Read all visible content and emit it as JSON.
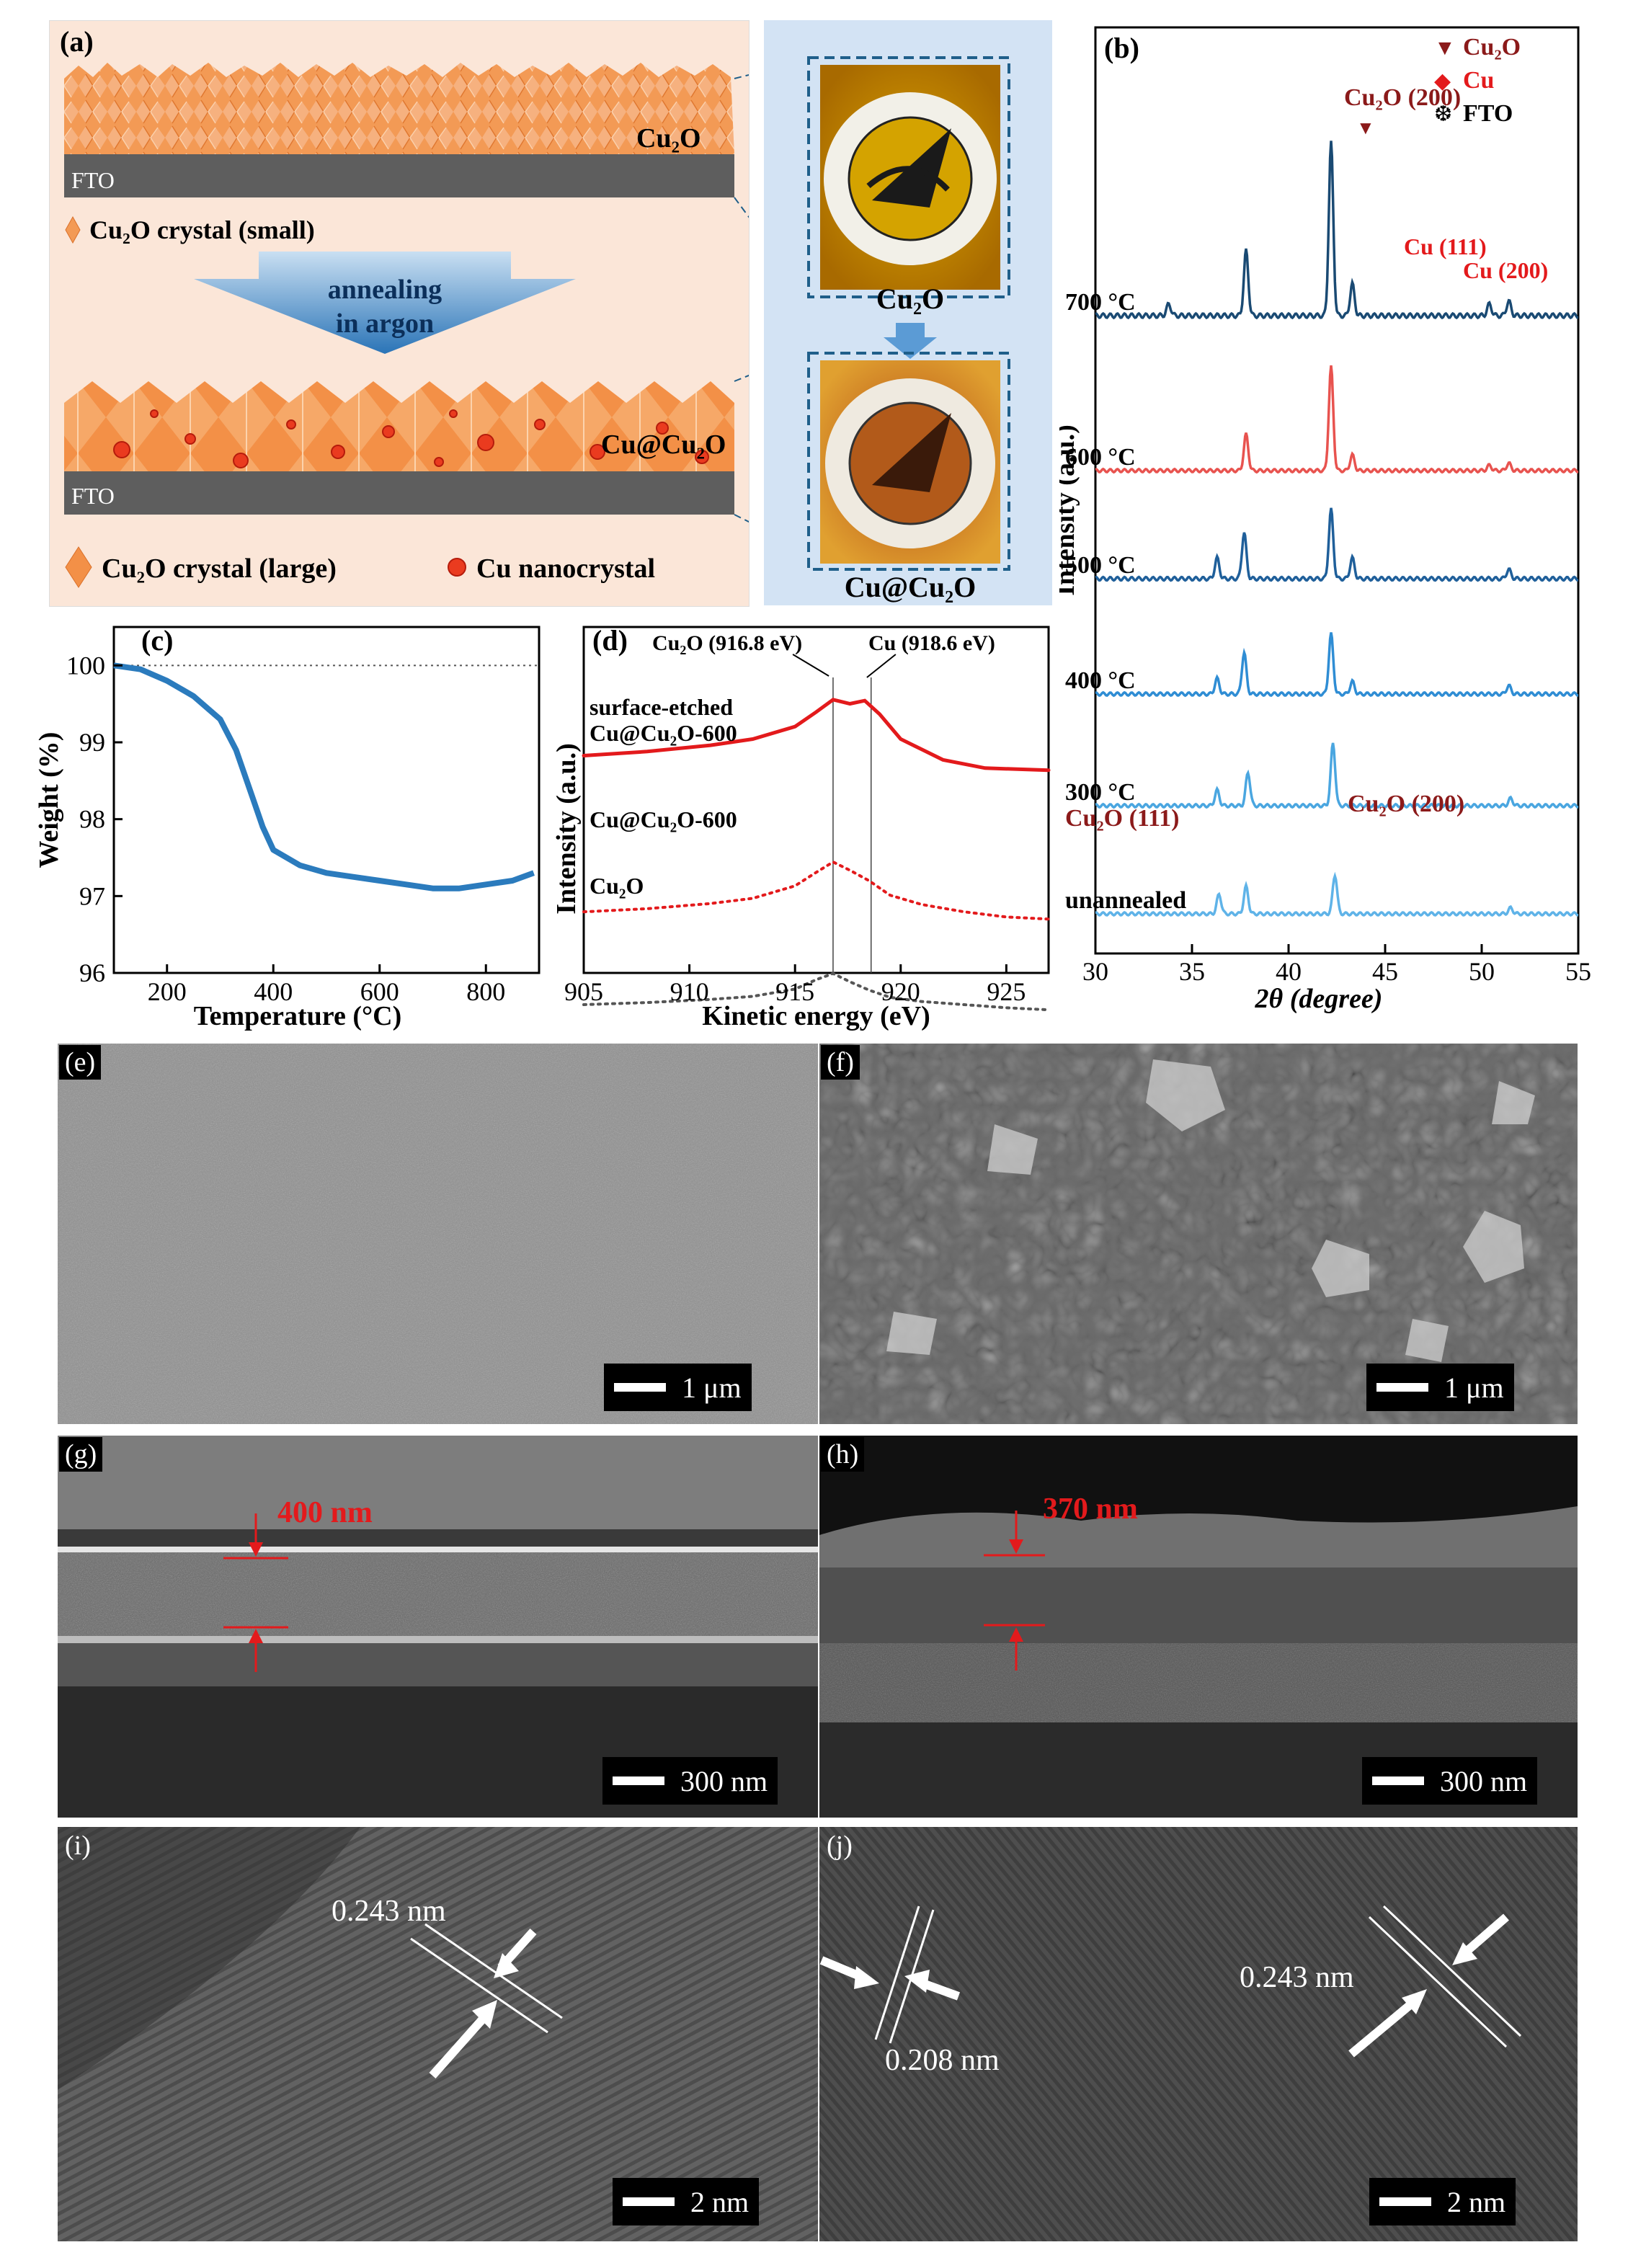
{
  "panel_a": {
    "label": "(a)",
    "layer_top": "Cu₂O",
    "substrate": "FTO",
    "legend_small": "Cu₂O crystal (small)",
    "arrow_text_1": "annealing",
    "arrow_text_2": "in argon",
    "layer_bottom": "Cu@Cu₂O",
    "legend_large": "Cu₂O crystal (large)",
    "legend_nano": "Cu nanocrystal",
    "photo_top": "Cu₂O",
    "photo_bottom": "Cu@Cu₂O"
  },
  "panel_b": {
    "label": "(b)",
    "legend": [
      {
        "symbol": "▼",
        "text": "Cu₂O",
        "color": "#8b1a1a"
      },
      {
        "symbol": "◆",
        "text": "Cu",
        "color": "#e31a1c"
      },
      {
        "symbol": "❆",
        "text": "FTO",
        "color": "#000000"
      }
    ],
    "peak_labels": {
      "cu2o200_top": "Cu₂O (200)",
      "cu111": "Cu (111)",
      "cu200": "Cu (200)",
      "cu2o111_bottom": "Cu₂O (111)",
      "cu2o200_bottom": "Cu₂O (200)"
    },
    "xlabel": "2θ (degree)",
    "ylabel": "Intensity (a.u.)"
  },
  "panel_c": {
    "label": "(c)"
  },
  "panel_d": {
    "label": "(d)",
    "ann_cu2o": "Cu₂O (916.8 eV)",
    "ann_cu": "Cu (918.6 eV)"
  },
  "sem": {
    "e": {
      "label": "(e)",
      "scale": "1 μm"
    },
    "f": {
      "label": "(f)",
      "scale": "1 μm"
    },
    "g": {
      "label": "(g)",
      "scale": "300 nm",
      "thickness": "400 nm"
    },
    "h": {
      "label": "(h)",
      "scale": "300 nm",
      "thickness": "370 nm"
    },
    "i": {
      "label": "(i)",
      "scale": "2 nm",
      "dspacing": "0.243 nm"
    },
    "j": {
      "label": "(j)",
      "scale": "2 nm",
      "dspacing1": "0.243 nm",
      "dspacing2": "0.208 nm"
    }
  },
  "chart_data": [
    {
      "type": "line",
      "panel": "b",
      "xlabel": "2θ (degree)",
      "ylabel": "Intensity (a.u.)",
      "xlim": [
        30,
        55
      ],
      "xticks": [
        30,
        35,
        40,
        45,
        50,
        55
      ],
      "series": [
        {
          "name": "700 °C",
          "color": "#1a4a73",
          "peaks": [
            [
              33.8,
              0.08
            ],
            [
              37.8,
              0.45
            ],
            [
              42.2,
              1.2
            ],
            [
              43.3,
              0.22
            ],
            [
              50.4,
              0.08
            ],
            [
              51.4,
              0.1
            ]
          ]
        },
        {
          "name": "600 °C",
          "color": "#e8534f",
          "peaks": [
            [
              37.8,
              0.35
            ],
            [
              42.2,
              1.0
            ],
            [
              43.3,
              0.15
            ],
            [
              50.4,
              0.05
            ],
            [
              51.4,
              0.07
            ]
          ]
        },
        {
          "name": "500 °C",
          "color": "#1f5f9a",
          "peaks": [
            [
              36.3,
              0.18
            ],
            [
              37.7,
              0.4
            ],
            [
              42.2,
              0.6
            ],
            [
              43.3,
              0.18
            ],
            [
              51.4,
              0.08
            ]
          ]
        },
        {
          "name": "400 °C",
          "color": "#2f8dd4",
          "peaks": [
            [
              36.3,
              0.15
            ],
            [
              37.7,
              0.4
            ],
            [
              42.2,
              0.58
            ],
            [
              43.3,
              0.12
            ],
            [
              51.4,
              0.08
            ]
          ]
        },
        {
          "name": "300 °C",
          "color": "#4aa6e0",
          "peaks": [
            [
              36.3,
              0.15
            ],
            [
              37.9,
              0.32
            ],
            [
              42.3,
              0.6
            ],
            [
              51.5,
              0.07
            ]
          ]
        },
        {
          "name": "unannealed",
          "color": "#5fb3e8",
          "peaks": [
            [
              36.4,
              0.2
            ],
            [
              37.8,
              0.28
            ],
            [
              42.4,
              0.4
            ],
            [
              51.5,
              0.06
            ]
          ]
        }
      ]
    },
    {
      "type": "line",
      "panel": "c",
      "xlabel": "Temperature (°C)",
      "ylabel": "Weight (%)",
      "xlim": [
        100,
        900
      ],
      "ylim": [
        96,
        100.5
      ],
      "xticks": [
        200,
        400,
        600,
        800
      ],
      "yticks": [
        96,
        97,
        98,
        99,
        100
      ],
      "reference_line": 100,
      "series": [
        {
          "name": "",
          "color": "#2b7bbd",
          "x": [
            100,
            150,
            200,
            250,
            300,
            330,
            360,
            380,
            400,
            450,
            500,
            550,
            600,
            650,
            700,
            750,
            800,
            850,
            890
          ],
          "y": [
            100.0,
            99.95,
            99.8,
            99.6,
            99.3,
            98.9,
            98.3,
            97.9,
            97.6,
            97.4,
            97.3,
            97.25,
            97.2,
            97.15,
            97.1,
            97.1,
            97.15,
            97.2,
            97.3
          ]
        }
      ]
    },
    {
      "type": "line",
      "panel": "d",
      "xlabel": "Kinetic energy (eV)",
      "ylabel": "Intensity (a.u.)",
      "xlim": [
        905,
        927
      ],
      "xticks": [
        905,
        910,
        915,
        920,
        925
      ],
      "vlines": [
        916.8,
        918.6
      ],
      "series": [
        {
          "name": "surface-etched Cu@Cu₂O-600",
          "color": "#e31a1c",
          "style": "solid",
          "x": [
            905,
            908,
            911,
            913,
            915,
            916,
            916.8,
            917.6,
            918.3,
            919,
            920,
            921,
            922,
            924,
            927
          ],
          "y": [
            0.42,
            0.46,
            0.52,
            0.58,
            0.7,
            0.84,
            0.96,
            0.92,
            0.95,
            0.82,
            0.58,
            0.48,
            0.38,
            0.3,
            0.28
          ]
        },
        {
          "name": "Cu@Cu₂O-600",
          "color": "#e31a1c",
          "style": "dotted",
          "x": [
            905,
            908,
            911,
            913,
            915,
            916,
            916.8,
            917.6,
            918.5,
            919.5,
            921,
            923,
            925,
            927
          ],
          "y": [
            0.2,
            0.23,
            0.28,
            0.33,
            0.45,
            0.58,
            0.68,
            0.6,
            0.5,
            0.36,
            0.27,
            0.2,
            0.15,
            0.13
          ]
        },
        {
          "name": "Cu₂O",
          "color": "#555555",
          "style": "dotted",
          "x": [
            905,
            908,
            911,
            913,
            915,
            916,
            916.8,
            917.6,
            918.5,
            919.5,
            921,
            923,
            925,
            927
          ],
          "y": [
            0.0,
            0.02,
            0.05,
            0.08,
            0.15,
            0.24,
            0.3,
            0.22,
            0.14,
            0.07,
            0.03,
            0.0,
            -0.03,
            -0.05
          ]
        }
      ]
    }
  ]
}
